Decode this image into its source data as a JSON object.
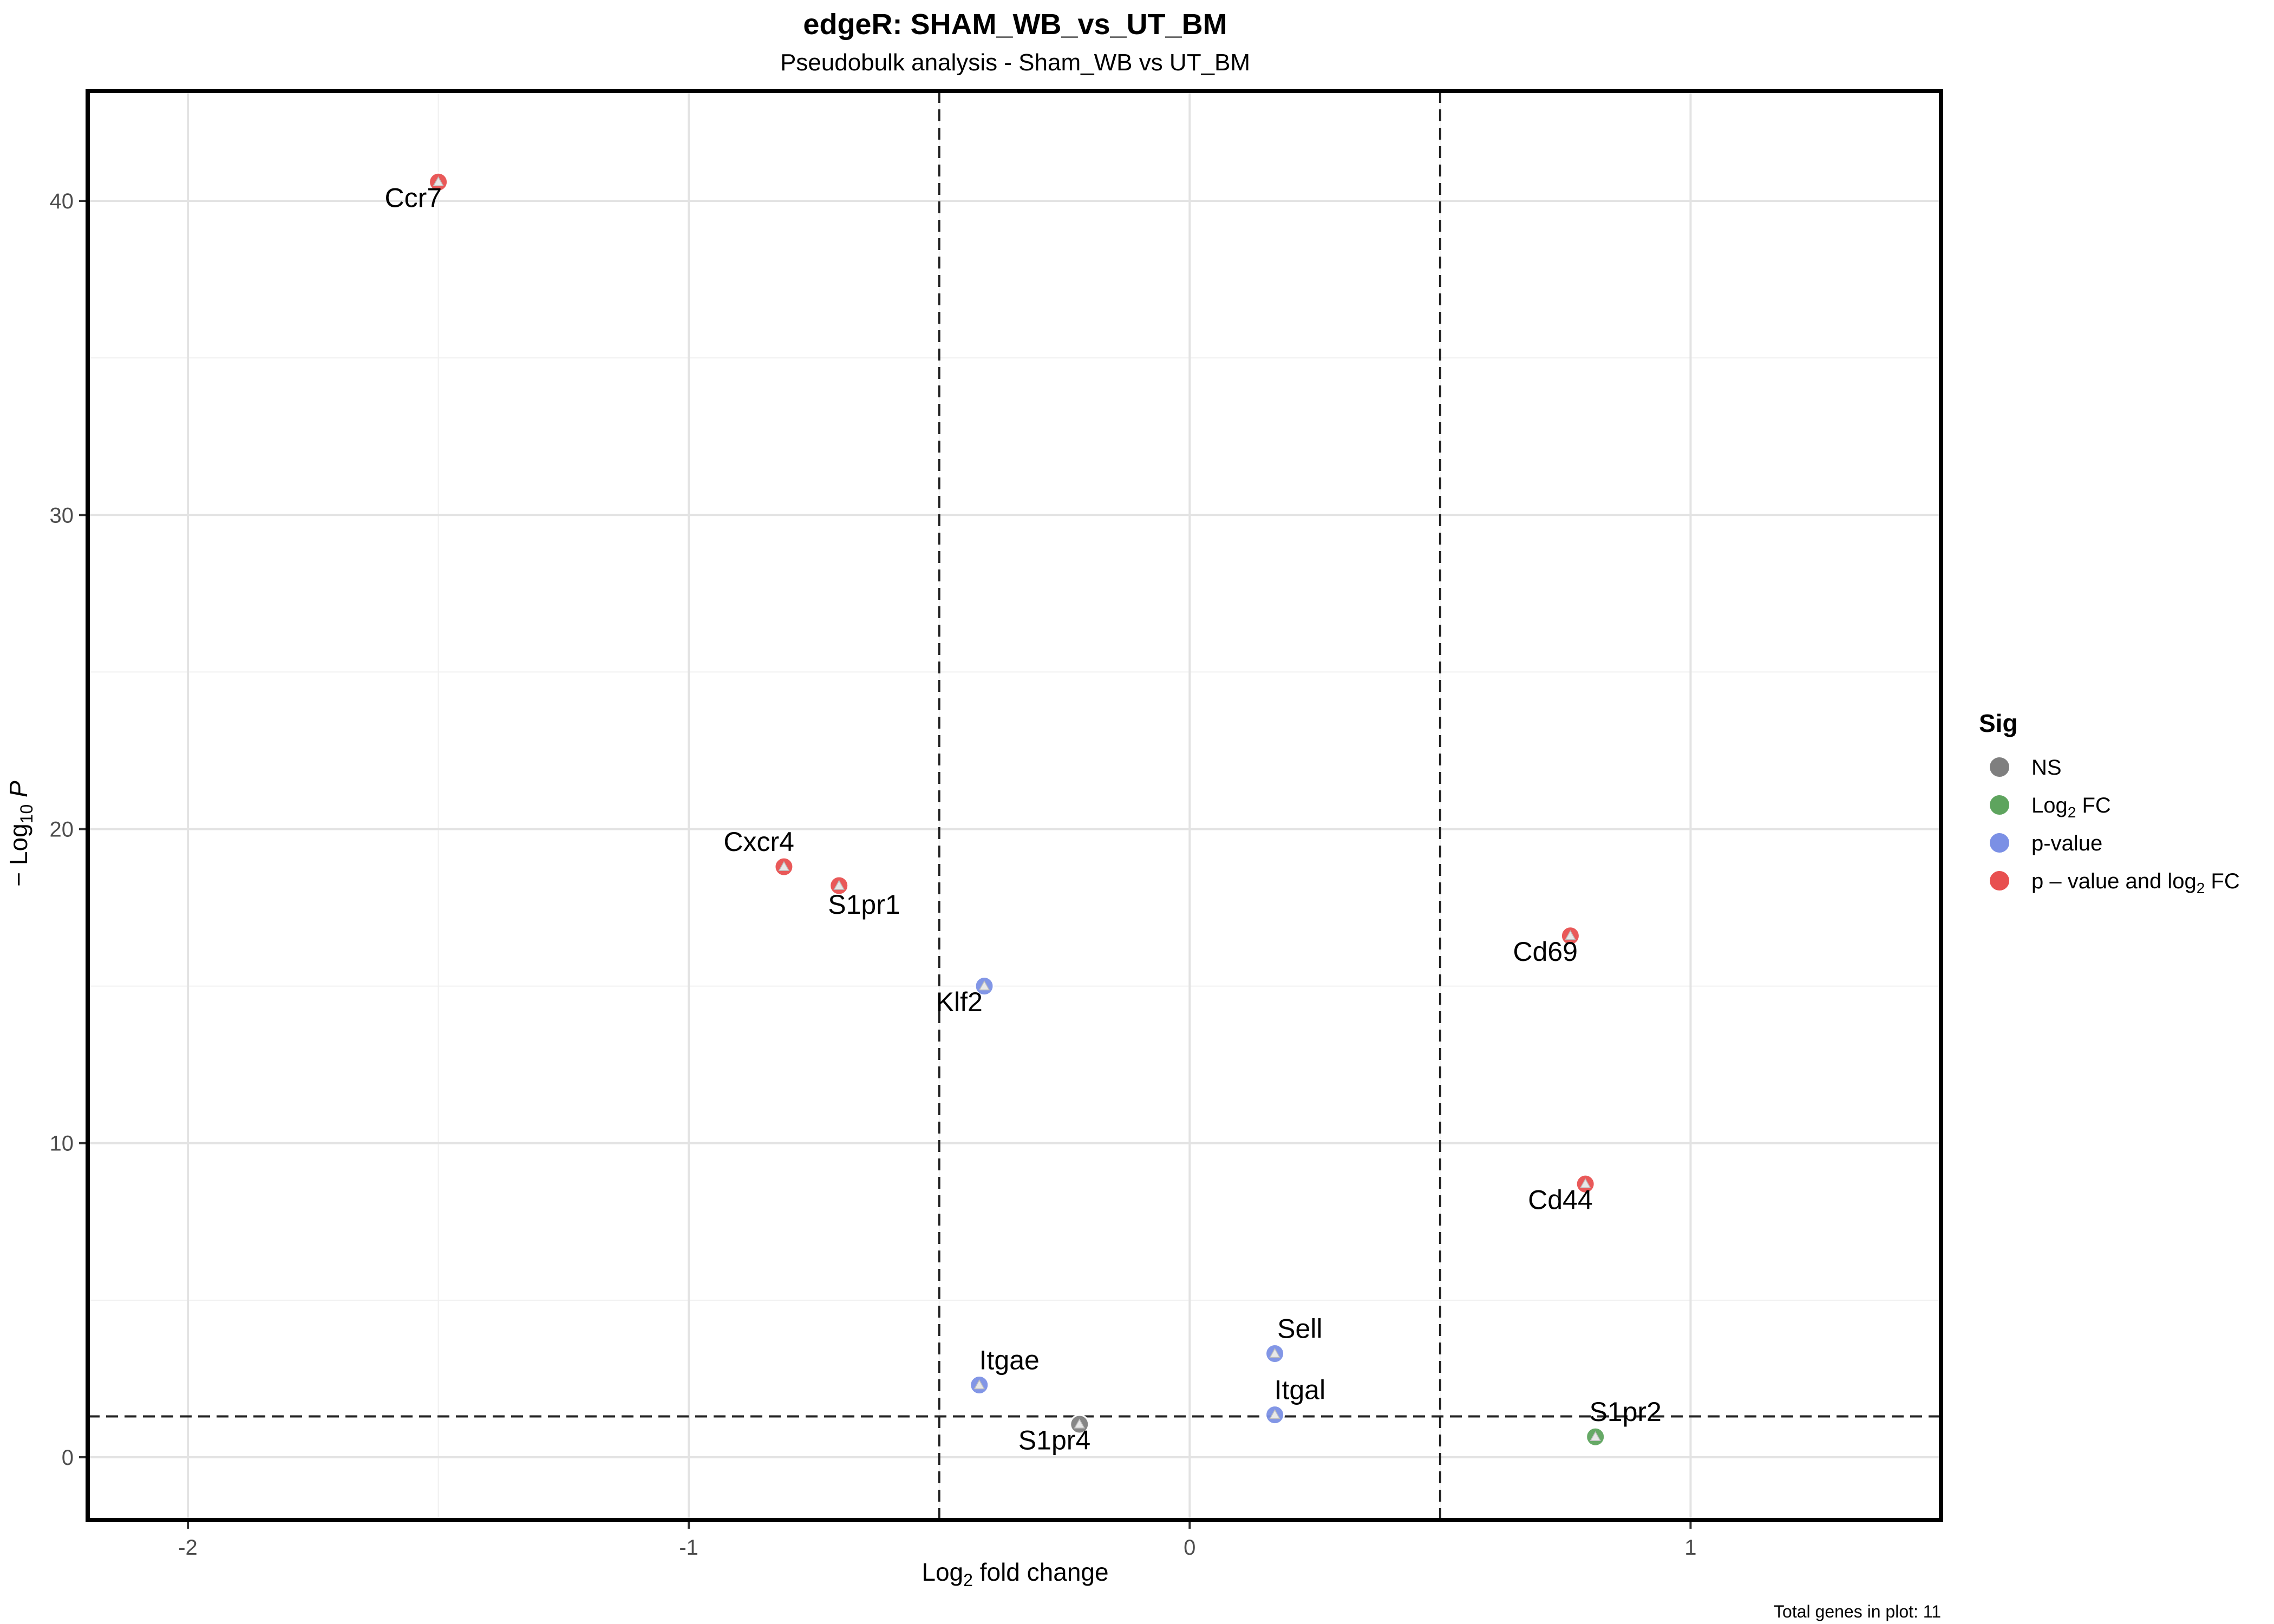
{
  "chart_data": {
    "type": "scatter",
    "title": "edgeR: SHAM_WB_vs_UT_BM",
    "subtitle": "Pseudobulk analysis - Sham_WB vs UT_BM",
    "xlabel": {
      "pre": "Log",
      "sub": "2",
      "post": " fold change"
    },
    "ylabel": {
      "pre": "− Log",
      "sub": "10",
      "italic": "P"
    },
    "caption": "Total genes in plot: 11",
    "xlim": [
      -2.2,
      1.5
    ],
    "ylim": [
      -2,
      43.5
    ],
    "x_ticks": [
      {
        "value": -2,
        "label": "-2"
      },
      {
        "value": -1,
        "label": "-1"
      },
      {
        "value": 0,
        "label": "0"
      },
      {
        "value": 1,
        "label": "1"
      }
    ],
    "y_ticks": [
      {
        "value": 0,
        "label": "0"
      },
      {
        "value": 10,
        "label": "10"
      },
      {
        "value": 20,
        "label": "20"
      },
      {
        "value": 30,
        "label": "30"
      },
      {
        "value": 40,
        "label": "40"
      }
    ],
    "fc_cutoff": [
      -0.5,
      0.5
    ],
    "p_cutoff": 1.3,
    "grid": true,
    "legend": {
      "title": "Sig",
      "position": "right",
      "items": [
        {
          "key": "NS",
          "pre": "NS",
          "sub": "",
          "post": "",
          "color": "#7f7f7f"
        },
        {
          "key": "FC",
          "pre": "Log",
          "sub": "2",
          "post": " FC",
          "color": "#5ea45e"
        },
        {
          "key": "P",
          "pre": "p-value",
          "sub": "",
          "post": "",
          "color": "#7b90e5"
        },
        {
          "key": "P_FC",
          "pre": "p – value and log",
          "sub": "2",
          "post": " FC",
          "color": "#e85050"
        }
      ]
    },
    "points": [
      {
        "gene": "Ccr7",
        "x": -1.5,
        "y": 40.6,
        "sig": "P_FC",
        "label_dx": -0.05,
        "label_dy": -0.8
      },
      {
        "gene": "Cxcr4",
        "x": -0.81,
        "y": 18.8,
        "sig": "P_FC",
        "label_dx": -0.05,
        "label_dy": 0.5
      },
      {
        "gene": "S1pr1",
        "x": -0.7,
        "y": 18.2,
        "sig": "P_FC",
        "label_dx": 0.05,
        "label_dy": -0.9
      },
      {
        "gene": "Klf2",
        "x": -0.41,
        "y": 15.0,
        "sig": "P",
        "label_dx": -0.05,
        "label_dy": -0.8
      },
      {
        "gene": "Cd69",
        "x": 0.76,
        "y": 16.6,
        "sig": "P_FC",
        "label_dx": -0.05,
        "label_dy": -0.8
      },
      {
        "gene": "Cd44",
        "x": 0.79,
        "y": 8.7,
        "sig": "P_FC",
        "label_dx": -0.05,
        "label_dy": -0.8
      },
      {
        "gene": "Sell",
        "x": 0.17,
        "y": 3.3,
        "sig": "P",
        "label_dx": 0.05,
        "label_dy": 0.5
      },
      {
        "gene": "Itgae",
        "x": -0.42,
        "y": 2.3,
        "sig": "P",
        "label_dx": 0.06,
        "label_dy": 0.5
      },
      {
        "gene": "Itgal",
        "x": 0.17,
        "y": 1.35,
        "sig": "P",
        "label_dx": 0.05,
        "label_dy": 0.5
      },
      {
        "gene": "S1pr4",
        "x": -0.22,
        "y": 1.05,
        "sig": "NS",
        "label_dx": -0.05,
        "label_dy": -0.8
      },
      {
        "gene": "S1pr2",
        "x": 0.81,
        "y": 0.65,
        "sig": "FC",
        "label_dx": 0.06,
        "label_dy": 0.5
      }
    ]
  }
}
